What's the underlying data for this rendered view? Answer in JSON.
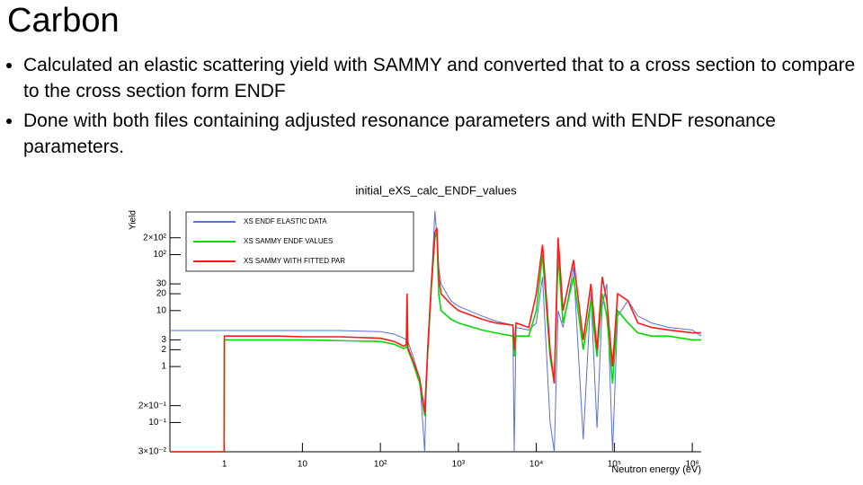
{
  "title": "Carbon",
  "bullets": [
    "Calculated an elastic scattering yield with SAMMY and converted that to a cross section to compare to the cross section form ENDF",
    "Done with both files containing adjusted resonance parameters and with ENDF resonance parameters."
  ],
  "chart_data": {
    "type": "line",
    "title": "initial_eXS_calc_ENDF_values",
    "x_label": "Neutron energy (eV)",
    "y_label": "Yield",
    "log_x": true,
    "log_y": true,
    "legend": "top-left",
    "xlim": [
      0.2,
      1300000
    ],
    "ylim": [
      0.03,
      600
    ],
    "xticks": [
      1,
      10,
      {
        "value": 100,
        "label": "10²"
      },
      {
        "value": 1000,
        "label": "10³"
      },
      {
        "value": 10000,
        "label": "10⁴"
      },
      {
        "value": 100000,
        "label": "10⁵"
      },
      {
        "value": 1000000,
        "label": "10⁶"
      }
    ],
    "yticks": [
      {
        "value": 0.03,
        "label": "3×10⁻²"
      },
      {
        "value": 0.1,
        "label": "10⁻¹"
      },
      {
        "value": 0.2,
        "label": "2×10⁻¹"
      },
      1,
      2,
      3,
      10,
      20,
      30,
      {
        "value": 100,
        "label": "10²"
      },
      {
        "value": 200,
        "label": "2×10²"
      }
    ],
    "x": [
      0.2,
      0.5,
      0.99,
      1,
      2,
      5,
      10,
      30,
      100,
      150,
      200,
      215,
      220,
      225,
      260,
      320,
      370,
      400,
      450,
      500,
      530,
      560,
      600,
      800,
      1000,
      2000,
      3000,
      5000,
      5200,
      5500,
      8000,
      10000,
      12000,
      15000,
      17000,
      19000,
      22000,
      30000,
      40000,
      50000,
      60000,
      70000,
      80000,
      95000,
      110000,
      150000,
      200000,
      300000,
      500000,
      1000000,
      1300000
    ],
    "series": [
      {
        "name": "XS ENDF ELASTIC DATA",
        "color": "#5b6fd8",
        "values": [
          4.4,
          4.4,
          4.4,
          4.4,
          4.4,
          4.4,
          4.4,
          4.4,
          4.2,
          3.8,
          3.2,
          3,
          3,
          2.8,
          1.6,
          0.6,
          0.03,
          2,
          30,
          600,
          200,
          60,
          30,
          15,
          12,
          8,
          6.5,
          5.5,
          0.03,
          5,
          4.5,
          6,
          40,
          0.1,
          0.03,
          10,
          5,
          60,
          0.05,
          20,
          0.08,
          12,
          30,
          0.03,
          8,
          15,
          8,
          6,
          5,
          4.5,
          3.5
        ]
      },
      {
        "name": "XS SAMMY ENDF VALUES",
        "color": "#00dd00",
        "values": [
          0.03,
          0.03,
          0.03,
          3,
          3,
          3,
          3,
          2.9,
          2.8,
          2.5,
          2.1,
          2.2,
          15,
          2,
          1.2,
          0.5,
          0.13,
          1.3,
          25,
          200,
          250,
          20,
          10,
          7,
          6,
          4.5,
          4,
          3.5,
          1.5,
          3.5,
          3.5,
          10,
          100,
          1.5,
          0.5,
          100,
          6,
          40,
          2,
          15,
          1.5,
          20,
          8,
          0.5,
          10,
          6,
          4,
          3.5,
          3.5,
          3,
          3
        ]
      },
      {
        "name": "XS SAMMY WITH FITTED PAR",
        "color": "#ff1a1a",
        "values": [
          0.03,
          0.03,
          0.03,
          3.5,
          3.5,
          3.5,
          3.4,
          3.4,
          3.2,
          2.8,
          2.3,
          2.5,
          20,
          2.2,
          1.3,
          0.6,
          0.15,
          1.5,
          30,
          250,
          300,
          40,
          20,
          13,
          10,
          7,
          6,
          5.5,
          2,
          6,
          5,
          20,
          150,
          2,
          0.5,
          200,
          10,
          80,
          3,
          30,
          2,
          40,
          15,
          1,
          20,
          15,
          6,
          5,
          4.5,
          4,
          4
        ]
      }
    ]
  }
}
